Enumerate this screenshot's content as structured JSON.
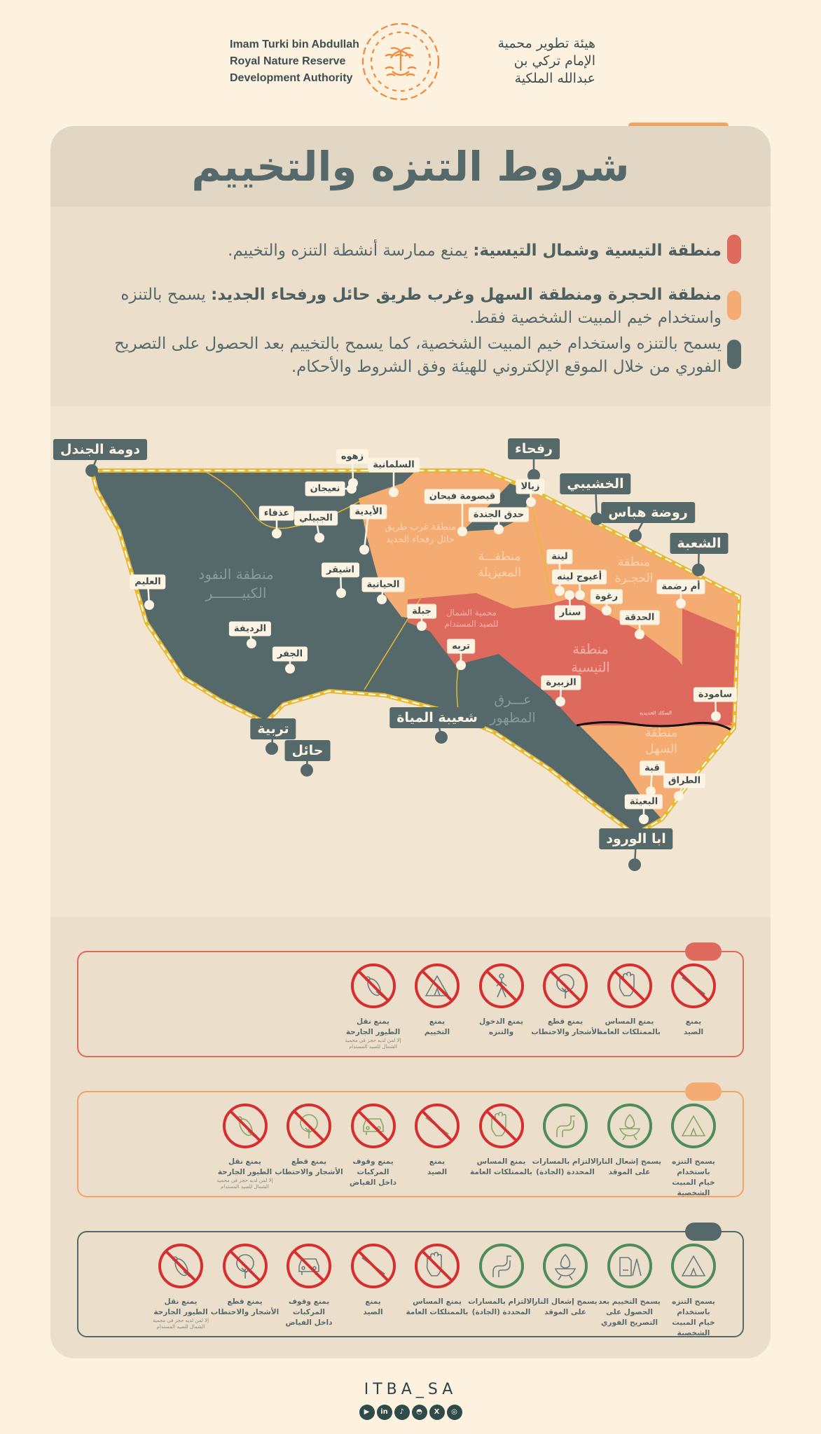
{
  "header": {
    "org_en": [
      "Imam Turki bin Abdullah",
      "Royal Nature Reserve",
      "Development Authority"
    ],
    "org_ar": [
      "هيئة تطوير محمية",
      "الإمام تركي بن",
      "عبدالله الملكية"
    ],
    "logo": "palm-flower-emblem"
  },
  "title": "شروط التنزه والتخييم",
  "rules": [
    {
      "bold": "منطقة التيسية وشمال التيسية:",
      "text": " يمنع ممارسة أنشطة التنزه والتخييم.",
      "color": "#dd6a5c"
    },
    {
      "bold": "منطقة الحجرة ومنطقة السهل وغرب طريق حائل ورفحاء الجديد:",
      "text": " يسمح بالتنزه واستخدام خيم المبيت الشخصية فقط.",
      "color": "#f4ac73"
    },
    {
      "bold": "",
      "text": "يسمح بالتنزه واستخدام خيم المبيت الشخصية، كما يسمح بالتخييم بعد الحصول على التصريح الفوري من خلال الموقع الإلكتروني للهيئة وفق الشروط والأحكام.",
      "color": "#56696a"
    }
  ],
  "map": {
    "colors": {
      "open": "#56696a",
      "limited": "#f4ac73",
      "banned": "#dd6a5c",
      "border": "#e8b931"
    },
    "places_major": [
      "دومة الجندل",
      "رفحاء",
      "الخشيبي",
      "روضة هباس",
      "الشعبة",
      "تربية",
      "حائل",
      "شعيبة المياة",
      "ابا الورود"
    ],
    "places_minor": [
      "زهوه",
      "السلمانية",
      "نعيجان",
      "عذفاء",
      "الجبيلي",
      "الأيدية",
      "قيصومة فيحان",
      "حدق الجندة",
      "زبالا",
      "لينة",
      "أعيوج لينه",
      "سنار",
      "رغوة",
      "الحدقة",
      "أم رضمة",
      "جبلة",
      "تربه",
      "اشيقر",
      "الحيانية",
      "العليم",
      "الرديفة",
      "الجفر",
      "الزبيرة",
      "سامودة",
      "قبة",
      "الطراق",
      "البعيثة"
    ],
    "regions": [
      "منطقة النفود\nالكبيـــــــر",
      "منطقة غرب طريق\nحائل رفحاء الجديد",
      "منطقـــة\nالمعيزيلة",
      "منطقة\nالحجـرة",
      "محمية الشمال\nللصيد المستدام",
      "منطقة\nالتيسية",
      "عـــرق\nالمظهور",
      "منطقة\nالسهل",
      "السكك الحديدية"
    ]
  },
  "icon_rows": [
    {
      "color": "#dd6a5c",
      "items": [
        {
          "l1": "يمنع",
          "l2": "الصيد",
          "icon": "rifle-icon",
          "allowed": false
        },
        {
          "l1": "يمنع المساس",
          "l2": "بالممتلكات العامة",
          "icon": "hand-icon",
          "allowed": false
        },
        {
          "l1": "يمنع قطع",
          "l2": "الأشجار والاحتطاب",
          "icon": "tree-icon",
          "allowed": false
        },
        {
          "l1": "يمنع الدخول",
          "l2": "والتنزه",
          "icon": "walker-icon",
          "allowed": false
        },
        {
          "l1": "يمنع",
          "l2": "التخييم",
          "icon": "tent-icon",
          "allowed": false
        },
        {
          "l1": "يمنع نقل",
          "l2": "الطيور الجارحة",
          "note": "إلا لمن لديه حجز في محمية الشمال للصيد المستدام",
          "icon": "falcon-icon",
          "allowed": false
        }
      ]
    },
    {
      "color": "#f0a46a",
      "items": [
        {
          "l1": "يسمح التنزه باستخدام",
          "l2": "خيام المبيت الشخصية",
          "icon": "tent-icon",
          "allowed": true
        },
        {
          "l1": "يسمح إشعال النار",
          "l2": "على الموقد",
          "icon": "fire-icon",
          "allowed": true
        },
        {
          "l1": "الالتزام بالمسارات",
          "l2": "المحددة (الجادة)",
          "icon": "road-icon",
          "allowed": true
        },
        {
          "l1": "يمنع المساس",
          "l2": "بالممتلكات العامة",
          "icon": "hand-icon",
          "allowed": false
        },
        {
          "l1": "يمنع",
          "l2": "الصيد",
          "icon": "rifle-icon",
          "allowed": false
        },
        {
          "l1": "يمنع وقوف المركبات",
          "l2": "داخل الفياض",
          "icon": "car-icon",
          "allowed": false
        },
        {
          "l1": "يمنع قطع",
          "l2": "الأشجار والاحتطاب",
          "icon": "tree-icon",
          "allowed": false
        },
        {
          "l1": "يمنع نقل",
          "l2": "الطيور الجارحة",
          "note": "إلا لمن لديه حجز في محمية الشمال للصيد المستدام",
          "icon": "falcon-icon",
          "allowed": false
        }
      ]
    },
    {
      "color": "#56696a",
      "items": [
        {
          "l1": "يسمح التنزه باستخدام",
          "l2": "خيام المبيت الشخصية",
          "icon": "tent-icon",
          "allowed": true
        },
        {
          "l1": "يسمح التخييم بعد",
          "l2": "الحصول على التصريح الفوري",
          "icon": "permit-icon",
          "allowed": true
        },
        {
          "l1": "يسمح إشعال النار",
          "l2": "على الموقد",
          "icon": "fire-icon",
          "allowed": true
        },
        {
          "l1": "الالتزام بالمسارات",
          "l2": "المحددة (الجادة)",
          "icon": "road-icon",
          "allowed": true
        },
        {
          "l1": "يمنع المساس",
          "l2": "بالممتلكات العامة",
          "icon": "hand-icon",
          "allowed": false
        },
        {
          "l1": "يمنع",
          "l2": "الصيد",
          "icon": "rifle-icon",
          "allowed": false
        },
        {
          "l1": "يمنع وقوف المركبات",
          "l2": "داخل الفياض",
          "icon": "car-icon",
          "allowed": false
        },
        {
          "l1": "يمنع قطع",
          "l2": "الأشجار والاحتطاب",
          "icon": "tree-icon",
          "allowed": false
        },
        {
          "l1": "يمنع نقل",
          "l2": "الطيور الجارحة",
          "note": "إلا لمن لديه حجز في محمية الشمال للصيد المستدام",
          "icon": "falcon-icon",
          "allowed": false
        }
      ]
    }
  ],
  "footer": {
    "handle": "ITBA_SA",
    "social": [
      "youtube-icon",
      "linkedin-icon",
      "tiktok-icon",
      "snapchat-icon",
      "x-icon",
      "instagram-icon"
    ]
  }
}
